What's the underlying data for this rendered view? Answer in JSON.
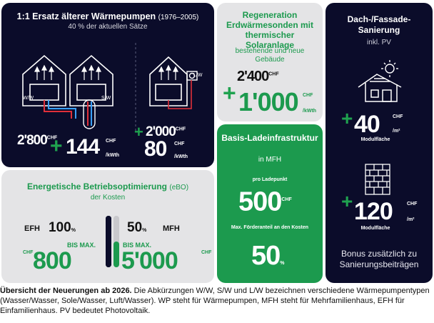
{
  "colors": {
    "navy": "#0b0c2a",
    "green": "#1c9a4e",
    "grey": "#e4e4e6",
    "accent_green": "#1fa24f"
  },
  "heatpump": {
    "title_bold": "1:1 Ersatz älterer Wärmepumpen",
    "title_years": "(1976–2005)",
    "subtitle": "40 % der aktuellen Sätze",
    "labels": {
      "ww": "W/W",
      "sw": "S/W",
      "lw": "L/W"
    },
    "left_base": "2'800",
    "left_base_sup": "CHF",
    "left_plus": "144",
    "left_plus_sup": "CHF",
    "left_plus_unit": "/kWth",
    "right_base": "2'000",
    "right_base_sup": "CHF",
    "right_plus": "80",
    "right_plus_sup": "CHF",
    "right_plus_unit": "/kWth",
    "plus_sign": "+",
    "icons": [
      "house-icon",
      "heat-arrows-icon",
      "ground-probe-icon",
      "air-fan-icon"
    ]
  },
  "regeneration": {
    "title": "Regeneration Erdwärmesonden mit thermischer Solaranlage",
    "subtitle": "bestehende und neue Gebäude",
    "base": "2'400",
    "base_sup": "CHF",
    "plus": "1'000",
    "plus_sup": "CHF",
    "plus_unit": "/kWth",
    "plus_sign": "+"
  },
  "facade": {
    "title": "Dach-/Fassade-Sanierung",
    "subtitle": "inkl. PV",
    "roof_value": "40",
    "roof_sup": "CHF",
    "roof_unit": "/m²",
    "roof_label": "Modulfläche",
    "wall_value": "120",
    "wall_sup": "CHF",
    "wall_unit": "/m²",
    "wall_label": "Modulfläche",
    "plus_sign": "+",
    "bonus": "Bonus zusätzlich zu Sanierungsbeiträgen",
    "icons": [
      "solar-house-icon",
      "sun-icon",
      "brick-wall-icon"
    ]
  },
  "charging": {
    "title": "Basis-Ladeinfrastruktur",
    "subtitle": "in MFH",
    "per_point_label": "pro Ladepunkt",
    "per_point_value": "500",
    "per_point_sup": "CHF",
    "max_label": "Max. Förderanteil an den Kosten",
    "max_value": "50",
    "max_unit": "%"
  },
  "optimization": {
    "title": "Energetische Betriebsoptimierung",
    "title_abbr": "(eBO)",
    "subtitle": "der Kosten",
    "efh_label": "EFH",
    "efh_percent": "100",
    "efh_percent_unit": "%",
    "mfh_percent": "50",
    "mfh_percent_unit": "%",
    "mfh_label": "MFH",
    "left_prefix": "CHF",
    "left_max": "BIS MAX.",
    "left_value": "800",
    "right_max": "BIS MAX.",
    "right_value": "5'000",
    "right_suffix": "CHF",
    "efh_fill_fraction": 1.0,
    "mfh_fill_fraction": 0.5
  },
  "caption": {
    "bold": "Übersicht der Neuerungen ab 2026.",
    "text": " Die Abkürzungen W/W, S/W und L/W bezeichnen verschiedene Wärmepumpentypen (Wasser/Wasser, Sole/Wasser, Luft/Wasser). WP steht für Wärmepumpen, MFH steht für Mehrfamilienhaus, EFH für Einfamilienhaus. PV bedeutet Photovoltaik."
  }
}
